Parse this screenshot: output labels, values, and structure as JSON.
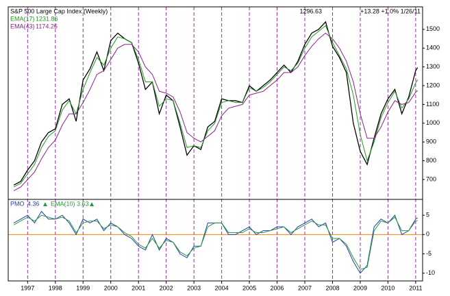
{
  "chart_data": [
    {
      "type": "line",
      "title": "S&P 500 Large Cap Index (Weekly)",
      "header_change": "+13.28 +1.0% 1/26/11",
      "x": [
        1996.5,
        1996.75,
        1997,
        1997.25,
        1997.5,
        1997.75,
        1998,
        1998.25,
        1998.5,
        1998.75,
        1999,
        1999.25,
        1999.5,
        1999.75,
        2000,
        2000.25,
        2000.5,
        2000.75,
        2001,
        2001.25,
        2001.5,
        2001.75,
        2002,
        2002.25,
        2002.5,
        2002.75,
        2003,
        2003.25,
        2003.5,
        2003.75,
        2004,
        2004.25,
        2004.5,
        2004.75,
        2005,
        2005.25,
        2005.5,
        2005.75,
        2006,
        2006.25,
        2006.5,
        2006.75,
        2007,
        2007.25,
        2007.5,
        2007.75,
        2008,
        2008.25,
        2008.5,
        2008.75,
        2009,
        2009.25,
        2009.5,
        2009.75,
        2010,
        2010.25,
        2010.5,
        2010.75,
        2011,
        2011.07
      ],
      "series": [
        {
          "name": "S&P 500",
          "color": "#000000",
          "values": [
            670,
            690,
            750,
            800,
            900,
            950,
            970,
            1100,
            1130,
            1010,
            1230,
            1290,
            1380,
            1280,
            1440,
            1480,
            1450,
            1430,
            1320,
            1180,
            1220,
            1050,
            1150,
            1120,
            980,
            830,
            880,
            860,
            980,
            1010,
            1130,
            1120,
            1120,
            1110,
            1200,
            1170,
            1200,
            1230,
            1270,
            1310,
            1270,
            1330,
            1420,
            1480,
            1500,
            1540,
            1410,
            1350,
            1270,
            1000,
            850,
            780,
            920,
            1050,
            1130,
            1180,
            1050,
            1140,
            1280,
            1296.63
          ]
        },
        {
          "name": "EMA(17)",
          "color": "#1f9a1f",
          "values": [
            660,
            680,
            730,
            780,
            870,
            930,
            960,
            1070,
            1120,
            1050,
            1180,
            1270,
            1350,
            1310,
            1400,
            1460,
            1450,
            1430,
            1340,
            1220,
            1220,
            1090,
            1130,
            1120,
            1000,
            870,
            880,
            870,
            960,
            1000,
            1110,
            1120,
            1110,
            1110,
            1190,
            1170,
            1190,
            1220,
            1260,
            1300,
            1280,
            1320,
            1400,
            1460,
            1490,
            1520,
            1430,
            1360,
            1290,
            1150,
            940,
            800,
            900,
            1030,
            1110,
            1170,
            1080,
            1130,
            1215,
            1231.86
          ]
        },
        {
          "name": "EMA(43)",
          "color": "#8a1f8a",
          "values": [
            640,
            660,
            700,
            740,
            810,
            870,
            910,
            990,
            1050,
            1050,
            1110,
            1180,
            1260,
            1280,
            1340,
            1400,
            1420,
            1420,
            1380,
            1300,
            1260,
            1170,
            1160,
            1140,
            1060,
            950,
            920,
            900,
            930,
            960,
            1040,
            1080,
            1090,
            1100,
            1150,
            1160,
            1170,
            1200,
            1230,
            1270,
            1270,
            1300,
            1360,
            1410,
            1450,
            1480,
            1450,
            1400,
            1330,
            1220,
            1050,
            920,
            920,
            980,
            1060,
            1120,
            1100,
            1110,
            1165,
            1174.26
          ]
        }
      ],
      "xlim": [
        1996.3,
        2011.25
      ],
      "ylim": [
        594,
        1620
      ],
      "yticks": [
        700,
        800,
        900,
        1000,
        1100,
        1200,
        1300,
        1400,
        1500
      ]
    },
    {
      "type": "line",
      "x": [
        1996.5,
        1996.75,
        1997,
        1997.25,
        1997.5,
        1997.75,
        1998,
        1998.25,
        1998.5,
        1998.75,
        1999,
        1999.25,
        1999.5,
        1999.75,
        2000,
        2000.25,
        2000.5,
        2000.75,
        2001,
        2001.25,
        2001.5,
        2001.75,
        2002,
        2002.25,
        2002.5,
        2002.75,
        2003,
        2003.25,
        2003.5,
        2003.75,
        2004,
        2004.25,
        2004.5,
        2004.75,
        2005,
        2005.25,
        2005.5,
        2005.75,
        2006,
        2006.25,
        2006.5,
        2006.75,
        2007,
        2007.25,
        2007.5,
        2007.75,
        2008,
        2008.25,
        2008.5,
        2008.75,
        2009,
        2009.25,
        2009.5,
        2009.75,
        2010,
        2010.25,
        2010.5,
        2010.75,
        2011,
        2011.07
      ],
      "series": [
        {
          "name": "PMO",
          "color": "#1f3fb0",
          "values": [
            3,
            4,
            5,
            3,
            6,
            4,
            4,
            5,
            3,
            0,
            4,
            3,
            4,
            1,
            3,
            2,
            0,
            -1,
            -3,
            -4,
            0,
            -4,
            -1,
            -2,
            -5,
            -6,
            -3,
            -3,
            3,
            3,
            3,
            0,
            0,
            1,
            2,
            0,
            1,
            1,
            2,
            2,
            0,
            2,
            3,
            4,
            2,
            3,
            -2,
            -1,
            -3,
            -7,
            -10,
            -8,
            2,
            4,
            3,
            5,
            0,
            1,
            4,
            4.36
          ]
        },
        {
          "name": "EMA(10)",
          "color": "#2a9a3a",
          "values": [
            2.5,
            3.5,
            4.5,
            3.5,
            5,
            4.5,
            4,
            4.5,
            3.5,
            0.5,
            3,
            3.5,
            3.5,
            1.5,
            2.5,
            2,
            0.5,
            -0.5,
            -2.5,
            -3.5,
            -1,
            -3.5,
            -1.5,
            -2,
            -4.5,
            -5.5,
            -3.5,
            -3,
            2,
            3,
            3,
            0.5,
            0.5,
            0.5,
            1.5,
            0.5,
            0.5,
            1,
            1.5,
            2,
            0.5,
            1.5,
            2.5,
            3.5,
            2.5,
            2.5,
            -1,
            -1,
            -2.5,
            -6,
            -9,
            -8.5,
            1,
            3.5,
            3,
            4.5,
            1,
            1,
            3.5,
            3.63
          ]
        }
      ],
      "reference_line": {
        "value": 0,
        "color": "#ff8000"
      },
      "xlim": [
        1996.3,
        2011.25
      ],
      "xticks": [
        1997,
        1998,
        1999,
        2000,
        2001,
        2002,
        2003,
        2004,
        2005,
        2006,
        2007,
        2008,
        2009,
        2010,
        2011
      ],
      "ylim": [
        -12,
        9.1
      ],
      "yticks": [
        -10,
        -5,
        0,
        5
      ]
    }
  ]
}
